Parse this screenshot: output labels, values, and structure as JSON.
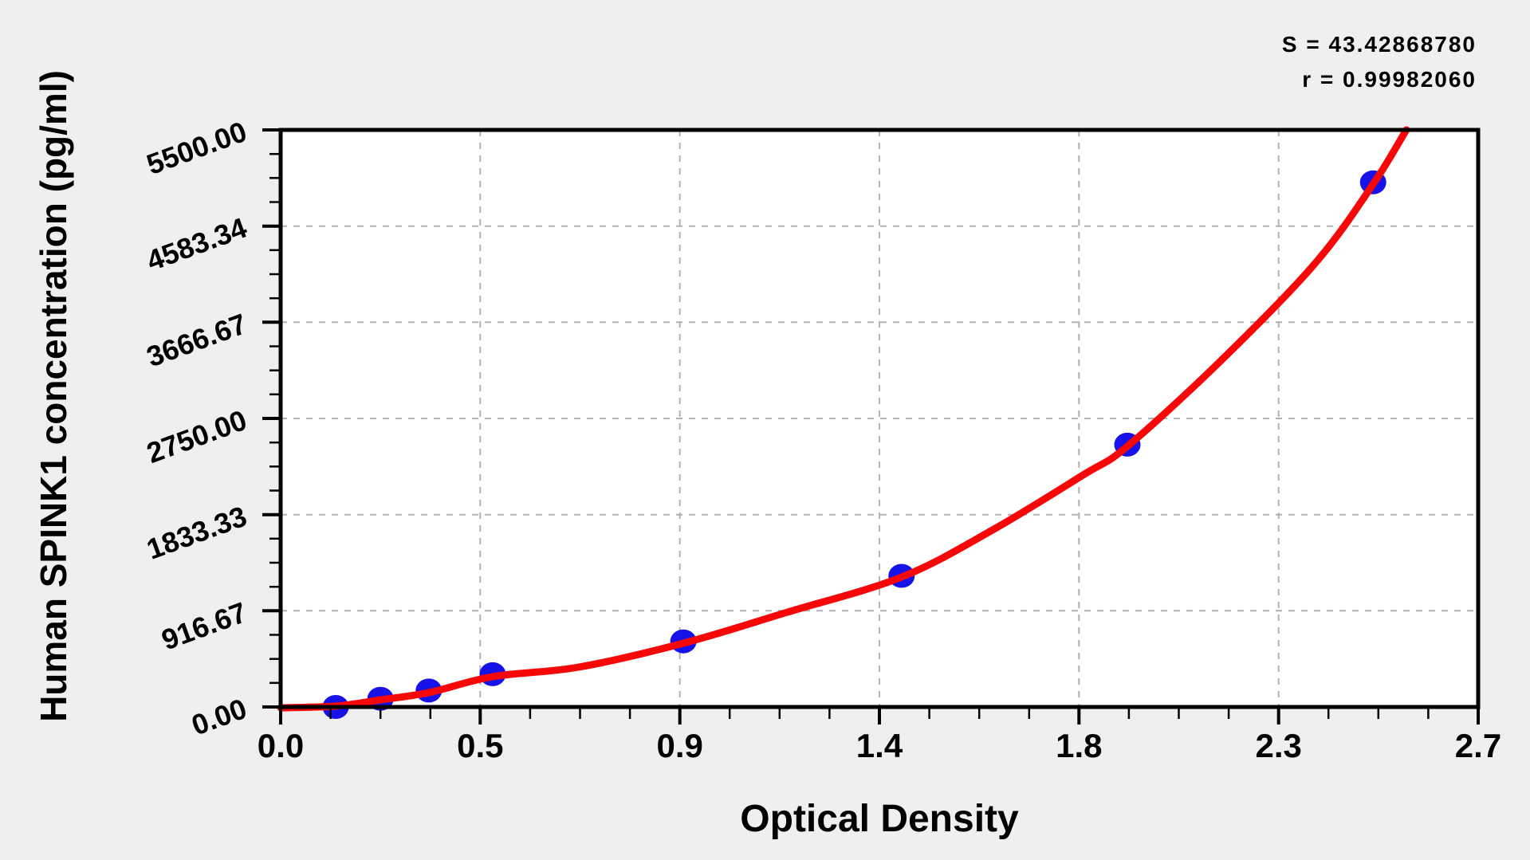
{
  "annotation": {
    "s_label": "S = 43.42868780",
    "r_label": "r = 0.99982060"
  },
  "chart_data": {
    "type": "scatter",
    "title": "",
    "xlabel": "Optical Density",
    "ylabel": "Human SPINK1 concentration (pg/ml)",
    "x_range": [
      0,
      2.7
    ],
    "y_range": [
      0,
      5500
    ],
    "x_ticks": [
      {
        "value": 0.0,
        "label": "0.0"
      },
      {
        "value": 0.45,
        "label": "0.5"
      },
      {
        "value": 0.9,
        "label": "0.9"
      },
      {
        "value": 1.35,
        "label": "1.4"
      },
      {
        "value": 1.8,
        "label": "1.8"
      },
      {
        "value": 2.25,
        "label": "2.3"
      },
      {
        "value": 2.7,
        "label": "2.7"
      }
    ],
    "y_ticks": [
      {
        "value": 0,
        "label": "0.00"
      },
      {
        "value": 916.67,
        "label": "916.67"
      },
      {
        "value": 1833.33,
        "label": "1833.33"
      },
      {
        "value": 2750,
        "label": "2750.00"
      },
      {
        "value": 3666.67,
        "label": "3666.67"
      },
      {
        "value": 4583.34,
        "label": "4583.34"
      },
      {
        "value": 5500,
        "label": "5500.00"
      }
    ],
    "minor_ticks_per_major_interval": 3,
    "grid": {
      "style": "dashed",
      "at_major_ticks": true
    },
    "legend": "none",
    "points": [
      {
        "od": 0.124,
        "conc": 0
      },
      {
        "od": 0.225,
        "conc": 78.125
      },
      {
        "od": 0.334,
        "conc": 156.25
      },
      {
        "od": 0.478,
        "conc": 312.5
      },
      {
        "od": 0.908,
        "conc": 625
      },
      {
        "od": 1.4,
        "conc": 1250
      },
      {
        "od": 1.909,
        "conc": 2500
      },
      {
        "od": 2.463,
        "conc": 5000
      }
    ],
    "fit_curve_samples": [
      {
        "od": 0.0,
        "conc": -8
      },
      {
        "od": 0.124,
        "conc": 8
      },
      {
        "od": 0.225,
        "conc": 68
      },
      {
        "od": 0.334,
        "conc": 137
      },
      {
        "od": 0.478,
        "conc": 289
      },
      {
        "od": 0.672,
        "conc": 380
      },
      {
        "od": 0.908,
        "conc": 608
      },
      {
        "od": 1.143,
        "conc": 904
      },
      {
        "od": 1.4,
        "conc": 1238
      },
      {
        "od": 1.605,
        "conc": 1687
      },
      {
        "od": 1.812,
        "conc": 2218
      },
      {
        "od": 1.909,
        "conc": 2484
      },
      {
        "od": 2.121,
        "conc": 3305
      },
      {
        "od": 2.333,
        "conc": 4231
      },
      {
        "od": 2.463,
        "conc": 4983
      },
      {
        "od": 2.538,
        "conc": 5500
      }
    ],
    "stats": {
      "S": "43.42868780",
      "r": "0.99982060"
    },
    "colors": {
      "point": "#1712e8",
      "curve": "#f70808",
      "grid": "#b2b2b2",
      "axis": "#000000",
      "plot_bg": "#ffffff",
      "page_bg": "#efefef",
      "text": "#000000"
    }
  }
}
